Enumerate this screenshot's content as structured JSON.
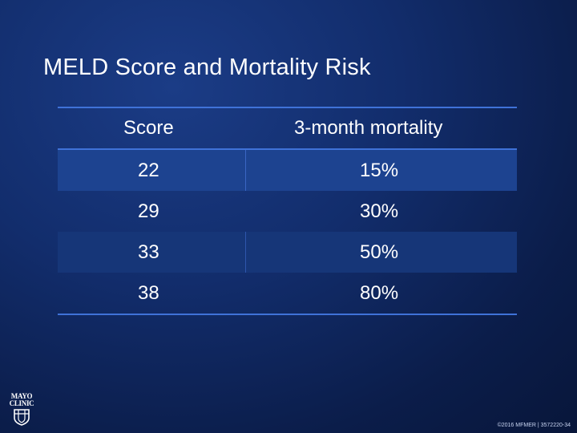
{
  "slide": {
    "title": "MELD Score and Mortality Risk"
  },
  "table": {
    "headers": [
      "Score",
      "3-month mortality"
    ],
    "rows": [
      {
        "score": "22",
        "mortality": "15%"
      },
      {
        "score": "29",
        "mortality": "30%"
      },
      {
        "score": "33",
        "mortality": "50%"
      },
      {
        "score": "38",
        "mortality": "80%"
      }
    ]
  },
  "logo": {
    "line1": "MAYO",
    "line2": "CLINIC",
    "icon": "mayo-shield-icon"
  },
  "footer": {
    "text": "©2016 MFMER | 3572220-34"
  },
  "colors": {
    "background": "#122d6c",
    "rule": "#3f72d8",
    "row_shaded": "#1d4390",
    "row_band": "#163678"
  }
}
